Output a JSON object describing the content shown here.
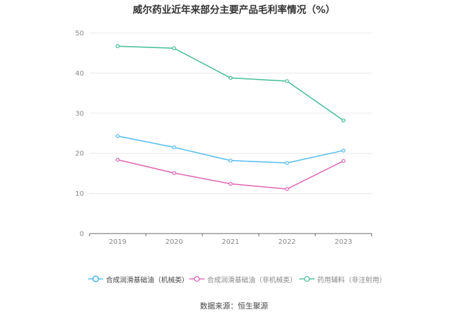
{
  "chart_data": {
    "type": "line",
    "title": "威尔药业近年来部分主要产品毛利率情况（%）",
    "xlabel": "",
    "ylabel": "",
    "x": [
      "2019",
      "2020",
      "2021",
      "2022",
      "2023"
    ],
    "ylim": [
      0,
      50
    ],
    "yticks": [
      0,
      10,
      20,
      30,
      40,
      50
    ],
    "grid": true,
    "legend_position": "bottom",
    "series": [
      {
        "name": "合成润滑基础油（机械类）",
        "color": "#5bc0f0",
        "values": [
          24.3,
          21.5,
          18.2,
          17.6,
          20.7
        ]
      },
      {
        "name": "合成润滑基础油（非机械类）",
        "color": "#e06bb5",
        "values": [
          18.4,
          15.1,
          12.4,
          11.1,
          18.1
        ]
      },
      {
        "name": "药用辅料（非注射用）",
        "color": "#4cc09a",
        "values": [
          46.7,
          46.2,
          38.8,
          38.0,
          28.2
        ]
      }
    ]
  },
  "source": "数据来源：恒生聚源"
}
